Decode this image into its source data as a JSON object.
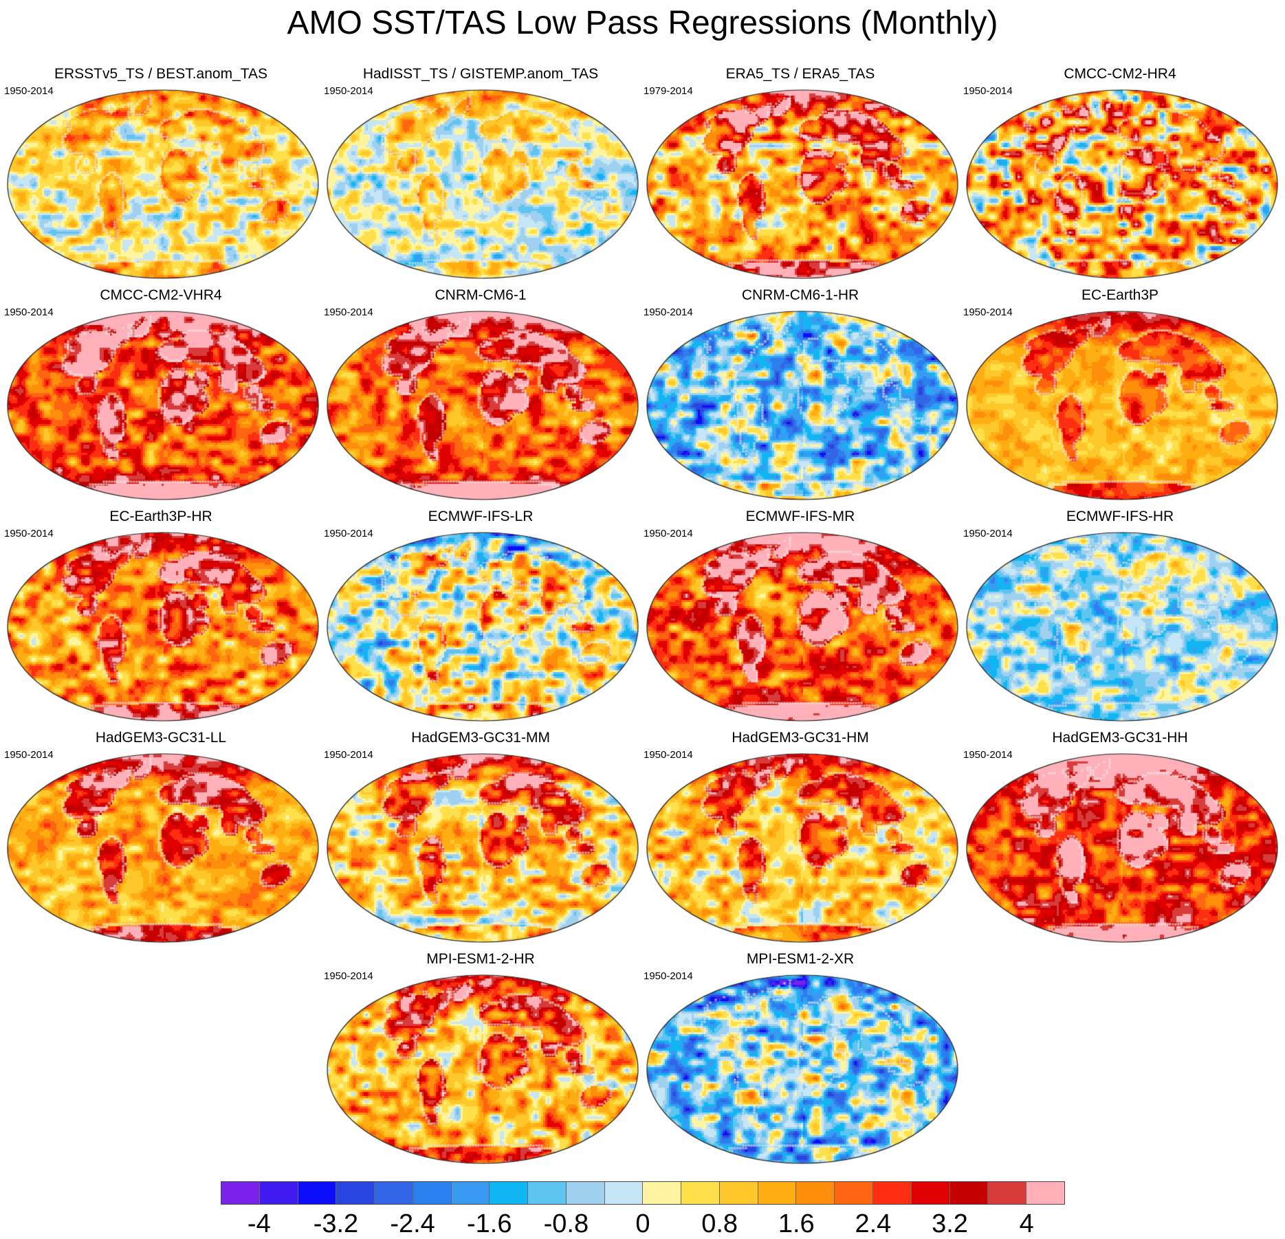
{
  "title": "AMO SST/TAS Low Pass Regressions (Monthly)",
  "panels": [
    {
      "title": "ERSSTv5_TS / BEST.anom_TAS",
      "period": "1950-2014",
      "base": 0.4,
      "land_bias": 0.9,
      "amp": 1.2,
      "polar_n": 1.6,
      "polar_s": 0.2,
      "seed": 1
    },
    {
      "title": "HadISST_TS / GISTEMP.anom_TAS",
      "period": "1950-2014",
      "base": -0.1,
      "land_bias": 0.9,
      "amp": 1.1,
      "polar_n": 1.8,
      "polar_s": -0.6,
      "seed": 2
    },
    {
      "title": "ERA5_TS / ERA5_TAS",
      "period": "1979-2014",
      "base": 1.3,
      "land_bias": 1.8,
      "amp": 1.6,
      "polar_n": 2.5,
      "polar_s": 1.0,
      "seed": 3
    },
    {
      "title": "CMCC-CM2-HR4",
      "period": "1950-2014",
      "base": 1.1,
      "land_bias": 1.0,
      "amp": 2.4,
      "polar_n": 0.0,
      "polar_s": -1.0,
      "seed": 4
    },
    {
      "title": "CMCC-CM2-VHR4",
      "period": "1950-2014",
      "base": 2.3,
      "land_bias": 1.6,
      "amp": 1.2,
      "polar_n": 3.0,
      "polar_s": 2.0,
      "seed": 5
    },
    {
      "title": "CNRM-CM6-1",
      "period": "1950-2014",
      "base": 2.0,
      "land_bias": 1.8,
      "amp": 1.1,
      "polar_n": 3.0,
      "polar_s": 2.2,
      "seed": 6
    },
    {
      "title": "CNRM-CM6-1-HR",
      "period": "1950-2014",
      "base": -1.0,
      "land_bias": 0.4,
      "amp": 1.9,
      "polar_n": 0.5,
      "polar_s": 2.0,
      "seed": 7
    },
    {
      "title": "EC-Earth3P",
      "period": "1950-2014",
      "base": 1.1,
      "land_bias": 1.3,
      "amp": 0.7,
      "polar_n": 2.6,
      "polar_s": 0.3,
      "seed": 8
    },
    {
      "title": "EC-Earth3P-HR",
      "period": "1950-2014",
      "base": 1.6,
      "land_bias": 1.6,
      "amp": 1.3,
      "polar_n": 2.8,
      "polar_s": 0.8,
      "seed": 9
    },
    {
      "title": "ECMWF-IFS-LR",
      "period": "1950-2014",
      "base": 0.0,
      "land_bias": 1.1,
      "amp": 1.9,
      "polar_n": -1.5,
      "polar_s": 0.6,
      "seed": 10
    },
    {
      "title": "ECMWF-IFS-MR",
      "period": "1950-2014",
      "base": 2.2,
      "land_bias": 1.9,
      "amp": 1.3,
      "polar_n": 3.0,
      "polar_s": 1.0,
      "seed": 11
    },
    {
      "title": "ECMWF-IFS-HR",
      "period": "1950-2014",
      "base": -0.6,
      "land_bias": 0.5,
      "amp": 1.2,
      "polar_n": -0.2,
      "polar_s": -0.4,
      "seed": 12
    },
    {
      "title": "HadGEM3-GC31-LL",
      "period": "1950-2014",
      "base": 1.3,
      "land_bias": 1.8,
      "amp": 0.9,
      "polar_n": 3.0,
      "polar_s": 0.4,
      "seed": 13
    },
    {
      "title": "HadGEM3-GC31-MM",
      "period": "1950-2014",
      "base": 0.9,
      "land_bias": 1.6,
      "amp": 1.4,
      "polar_n": 3.0,
      "polar_s": -1.2,
      "seed": 14
    },
    {
      "title": "HadGEM3-GC31-HM",
      "period": "1950-2014",
      "base": 1.0,
      "land_bias": 1.6,
      "amp": 1.3,
      "polar_n": 2.8,
      "polar_s": -1.0,
      "seed": 15
    },
    {
      "title": "HadGEM3-GC31-HH",
      "period": "1950-2014",
      "base": 2.6,
      "land_bias": 1.6,
      "amp": 1.2,
      "polar_n": 3.6,
      "polar_s": 1.0,
      "seed": 16
    },
    {
      "title": "MPI-ESM1-2-HR",
      "period": "1950-2014",
      "base": 1.1,
      "land_bias": 1.6,
      "amp": 1.4,
      "polar_n": 3.0,
      "polar_s": 0.0,
      "seed": 17
    },
    {
      "title": "MPI-ESM1-2-XR",
      "period": "1950-2014",
      "base": -0.9,
      "land_bias": 0.6,
      "amp": 1.9,
      "polar_n": -1.8,
      "polar_s": -1.4,
      "seed": 18
    }
  ],
  "colorbar": {
    "colors": [
      "#7b22ea",
      "#3f1bf2",
      "#0b0dfb",
      "#2746e0",
      "#3366e6",
      "#2b80f0",
      "#3a9af2",
      "#10b6f4",
      "#5ec4f0",
      "#9fd0ef",
      "#c5e6f6",
      "#fff4a0",
      "#ffe04a",
      "#ffc82a",
      "#ffae12",
      "#ff8e0a",
      "#ff6410",
      "#ff2e10",
      "#e00000",
      "#c40000",
      "#d93a3a",
      "#ffb0b8"
    ],
    "bounds_min": -4.4,
    "step": 0.4,
    "tick_labels": [
      "-4",
      "-3.2",
      "-2.4",
      "-1.6",
      "-0.8",
      "0",
      "0.8",
      "1.6",
      "2.4",
      "3.2",
      "4"
    ],
    "tick_values": [
      -4,
      -3.2,
      -2.4,
      -1.6,
      -0.8,
      0,
      0.8,
      1.6,
      2.4,
      3.2,
      4
    ]
  }
}
